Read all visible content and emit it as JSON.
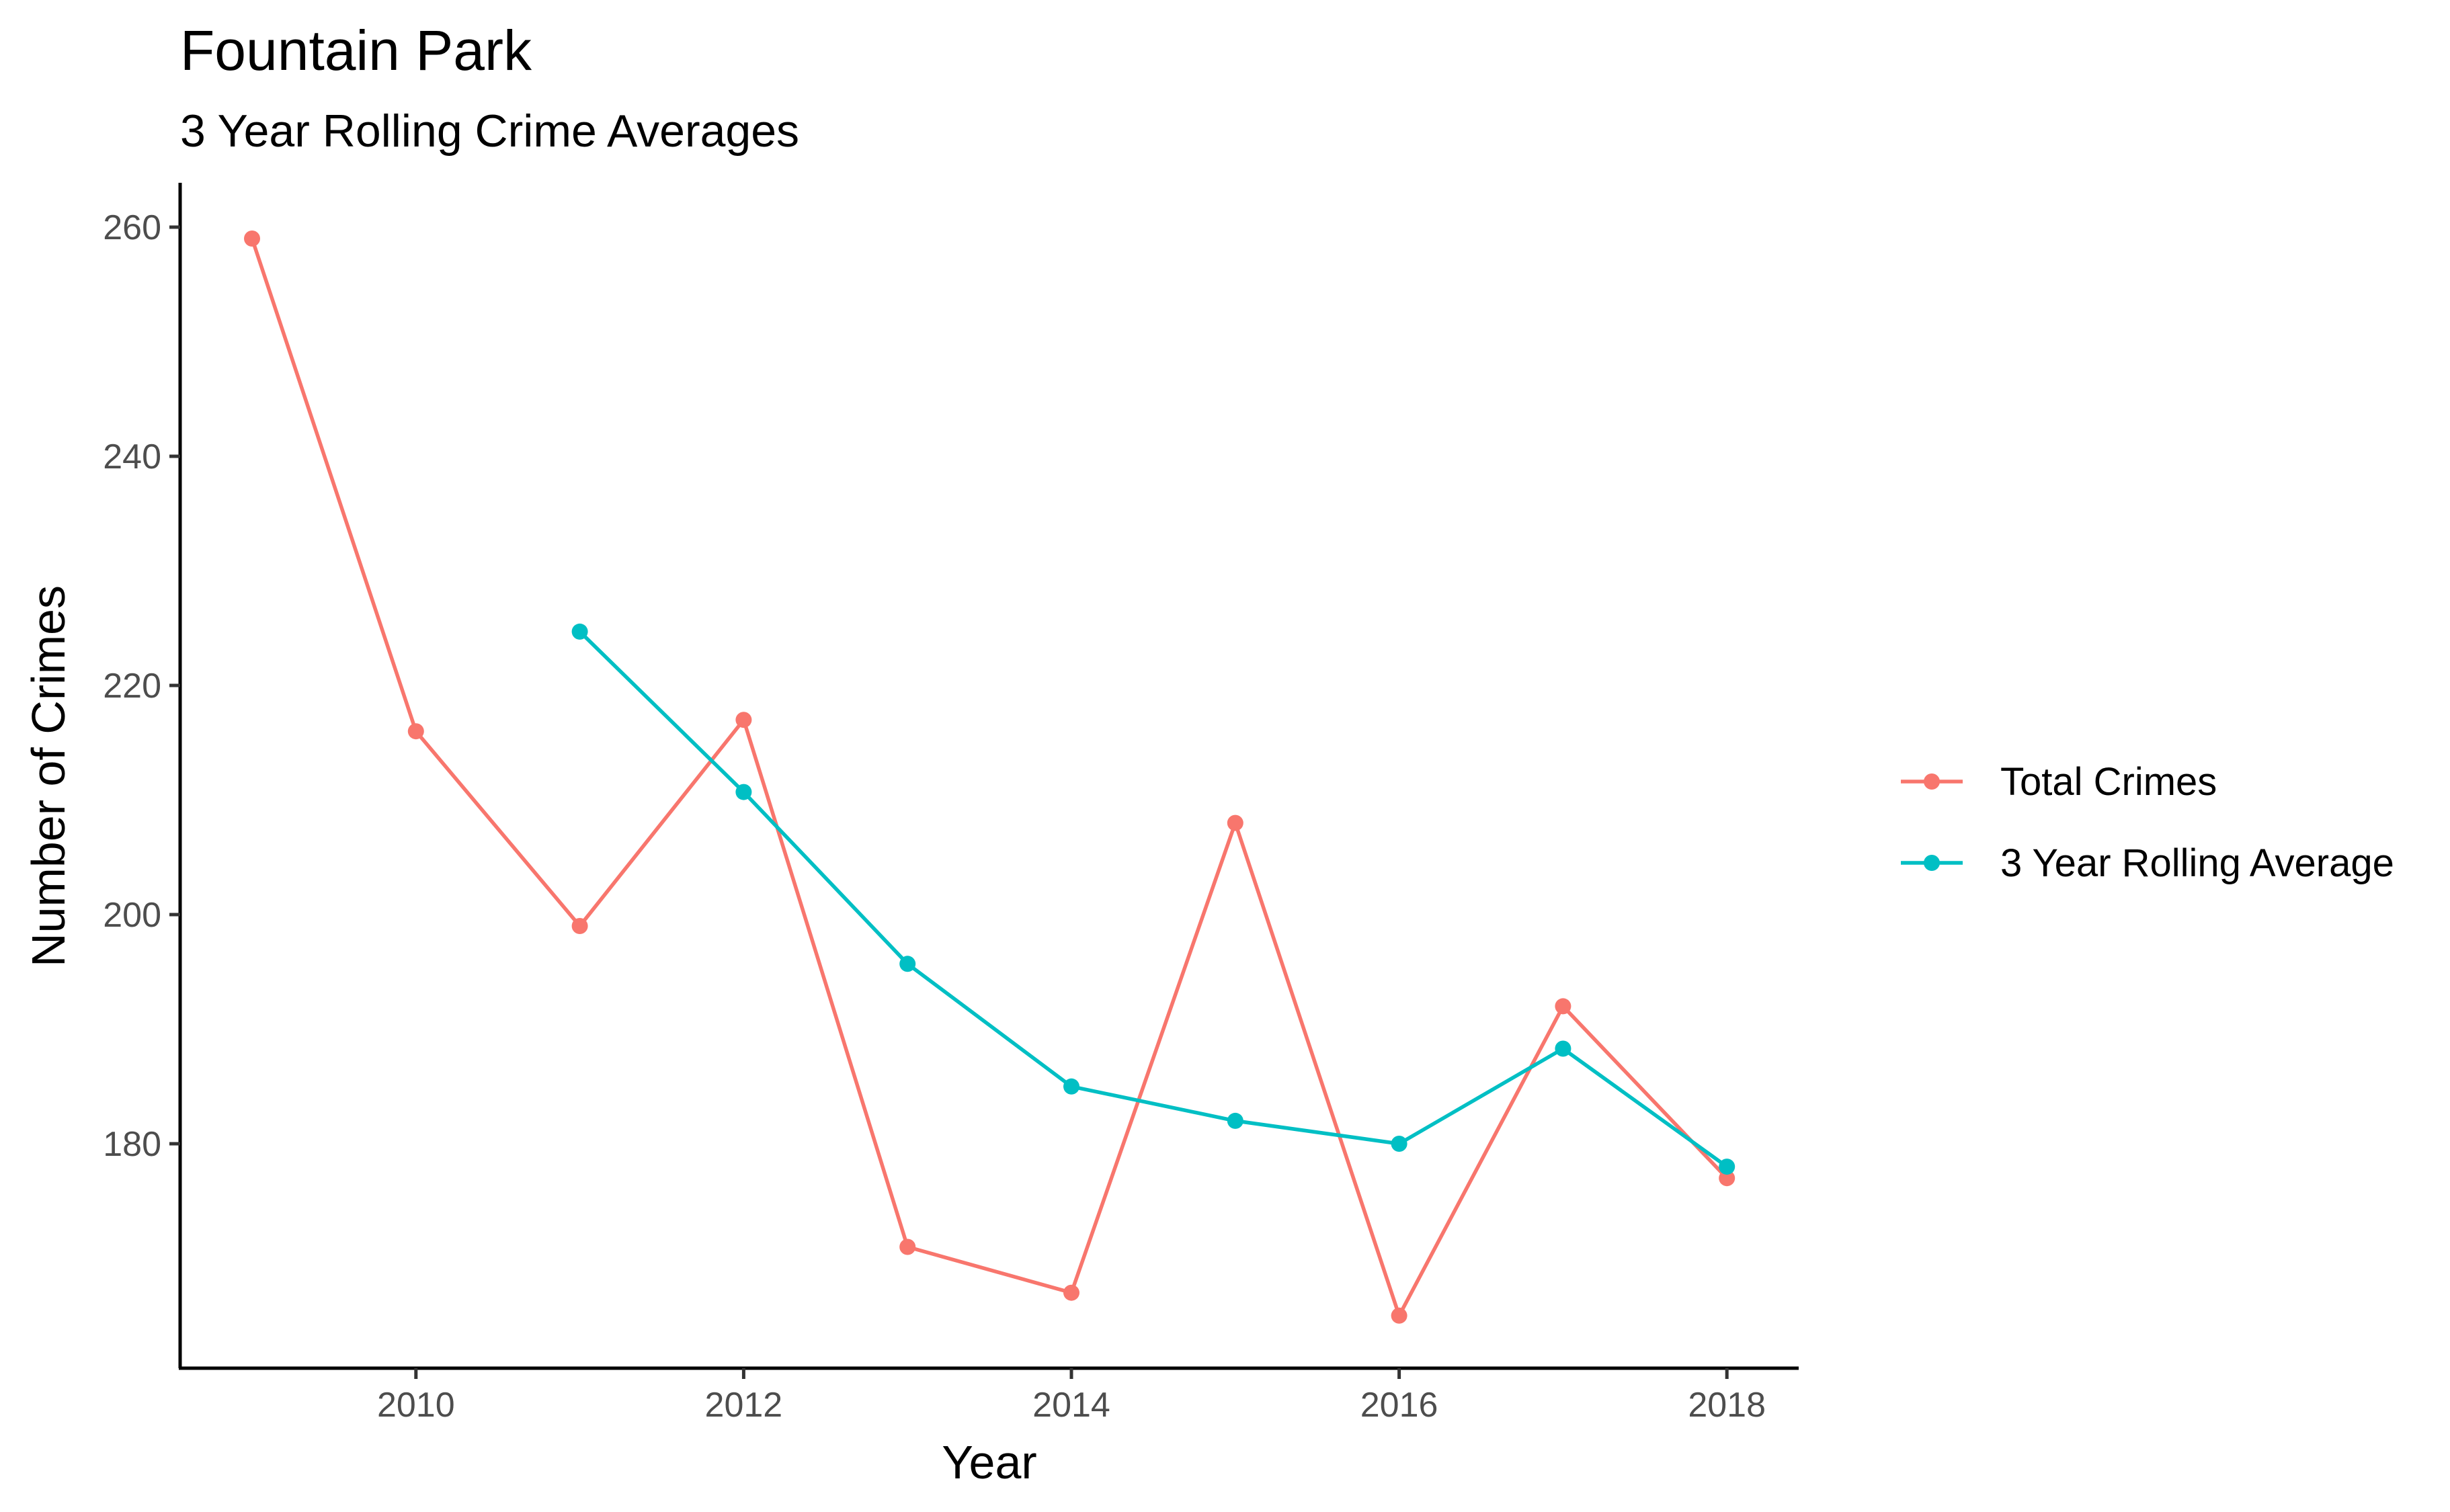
{
  "chart_data": {
    "type": "line",
    "title": "Fountain Park",
    "subtitle": "3 Year Rolling Crime Averages",
    "xlabel": "Year",
    "ylabel": "Number of Crimes",
    "xlim": [
      2008.5,
      2018.5
    ],
    "ylim": [
      161,
      264
    ],
    "x_ticks": [
      2010,
      2012,
      2014,
      2016,
      2018
    ],
    "y_ticks": [
      180,
      200,
      220,
      240,
      260
    ],
    "grid": false,
    "legend_position": "right",
    "series": [
      {
        "name": "Total Crimes",
        "color": "#F8766D",
        "points": [
          {
            "x": 2009,
            "y": 259
          },
          {
            "x": 2010,
            "y": 216
          },
          {
            "x": 2011,
            "y": 199
          },
          {
            "x": 2012,
            "y": 217
          },
          {
            "x": 2013,
            "y": 171
          },
          {
            "x": 2014,
            "y": 167
          },
          {
            "x": 2015,
            "y": 208
          },
          {
            "x": 2016,
            "y": 165
          },
          {
            "x": 2017,
            "y": 192
          },
          {
            "x": 2018,
            "y": 177
          }
        ]
      },
      {
        "name": "3 Year Rolling Average",
        "color": "#00BFC4",
        "points": [
          {
            "x": 2011,
            "y": 224.7
          },
          {
            "x": 2012,
            "y": 210.7
          },
          {
            "x": 2013,
            "y": 195.7
          },
          {
            "x": 2014,
            "y": 185
          },
          {
            "x": 2015,
            "y": 182
          },
          {
            "x": 2016,
            "y": 180
          },
          {
            "x": 2017,
            "y": 188.3
          },
          {
            "x": 2018,
            "y": 178
          }
        ]
      }
    ]
  }
}
